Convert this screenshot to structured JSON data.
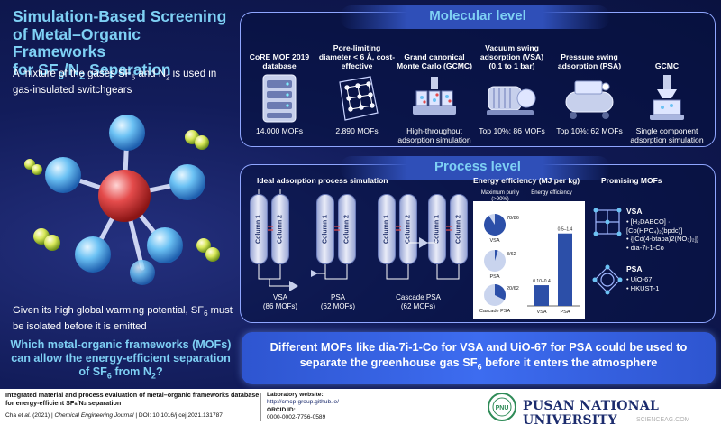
{
  "title": {
    "line1": "Simulation-Based Screening",
    "line2": "of Metal–Organic Frameworks",
    "line3_prefix": "for SF",
    "line3_sub1": "6",
    "line3_mid": "/N",
    "line3_sub2": "2",
    "line3_suffix": " Separation"
  },
  "intro": {
    "prefix": "A mixture of the gases SF",
    "sub1": "6",
    "mid": " and N",
    "sub2": "2",
    "suffix": " is used in gas-insulated switchgears"
  },
  "gwp": {
    "prefix": "Given its high global warming potential, SF",
    "sub": "6",
    "suffix": " must be isolated before it is emitted"
  },
  "question": {
    "prefix": "Which metal-organic frameworks (MOFs) can allow the energy-efficient separation of  SF",
    "sub1": "6",
    "mid": " from N",
    "sub2": "2",
    "suffix": "?"
  },
  "molecular": {
    "title": "Molecular level",
    "steps": [
      {
        "head": "CoRE MOF 2019 database",
        "foot": "14,000 MOFs",
        "icon": "database-icon"
      },
      {
        "head": "Pore-limiting diameter < 6 Å, cost-effective",
        "foot": "2,890 MOFs",
        "icon": "crystal-lattice-icon"
      },
      {
        "head": "Grand canonical Monte Carlo (GCMC)",
        "foot": "High-throughput adsorption simulation",
        "icon": "gcmc-cubes-icon"
      },
      {
        "head": "Vacuum swing adsorption (VSA) (0.1 to 1 bar)",
        "foot": "Top 10%: 86 MOFs",
        "icon": "vacuum-pump-icon"
      },
      {
        "head": "Pressure swing adsorption (PSA)",
        "foot": "Top 10%: 62 MOFs",
        "icon": "compressor-icon"
      },
      {
        "head": "GCMC",
        "foot": "Single component adsorption simulation",
        "icon": "single-component-icon"
      }
    ]
  },
  "process": {
    "title": "Process level",
    "ideal_title": "Ideal adsorption process simulation",
    "column1": "Column 1",
    "column2": "Column 2",
    "vsa_caption": "VSA",
    "vsa_count": "(86 MOFs)",
    "psa_caption": "PSA",
    "psa_count": "(62 MOFs)",
    "cascade_caption": "Cascade PSA",
    "cascade_count": "(62 MOFs)",
    "efficiency_title": "Energy efficiency (MJ per kg)",
    "max_purity_label": "Maximum purity (>90%)",
    "energy_eff_label": "Energy efficiency",
    "pie_vsa_pct": "78/86",
    "pie_vsa_label": "VSA",
    "pie_vsa_fraction": 0.907,
    "pie_psa_pct": "3/62",
    "pie_psa_label": "PSA",
    "pie_psa_fraction": 0.048,
    "pie_cascade_pct": "20/62",
    "pie_cascade_label": "Cascade PSA",
    "pie_cascade_fraction": 0.323,
    "bar_vsa_label": "VSA",
    "bar_vsa_range": "0.10–0.4",
    "bar_vsa_value": 0.4,
    "bar_psa_label": "PSA",
    "bar_psa_range": "0.5–1.4",
    "bar_psa_value": 1.4,
    "promising_title": "Promising MOFs",
    "vsa_group": "VSA",
    "vsa_mofs": [
      "• [H₂DABCO] ·",
      "  [Co(HPO₄)₂(bpdc)]",
      "• {[Cd(4-btapa)2(NO₃)₂]}",
      "• dia-7i-1-Co"
    ],
    "psa_group": "PSA",
    "psa_mofs": [
      "• UiO-67",
      "• HKUST-1"
    ]
  },
  "banner": {
    "line1": "Different MOFs like dia-7i-1-Co for VSA and UiO-67 for PSA could be used to",
    "line2_prefix": "separate the greenhouse gas SF",
    "line2_sub": "6",
    "line2_suffix": " before it enters the atmosphere"
  },
  "footer": {
    "paper_title": "Integrated material and process evaluation of metal–organic frameworks database for energy-efficient SF₆/N₂ separation",
    "citation_prefix": "Cha ",
    "citation_etal": "et al.",
    "citation_mid": " (2021) | ",
    "citation_journal": "Chemical Engineering Journal",
    "citation_suffix": " | DOI: 10.1016/j.cej.2021.131787",
    "lab_label": "Laboratory website:",
    "lab_url": "http://cmcp-group.github.io/",
    "orcid_label": "ORCID ID:",
    "orcid_value": "0000-0002-7756-0589",
    "university": "PUSAN NATIONAL UNIVERSITY",
    "seal_text": "PNU",
    "watermark": "SCIENCEAG.COM"
  },
  "colors": {
    "background": "#0b1647",
    "accent_cyan": "#7ed0f4",
    "panel_border": "#8fa6ff",
    "banner_blue": "#3d6cf0",
    "sf6_red": "#d33a3a",
    "fluorine_blue": "#55b4f0"
  }
}
